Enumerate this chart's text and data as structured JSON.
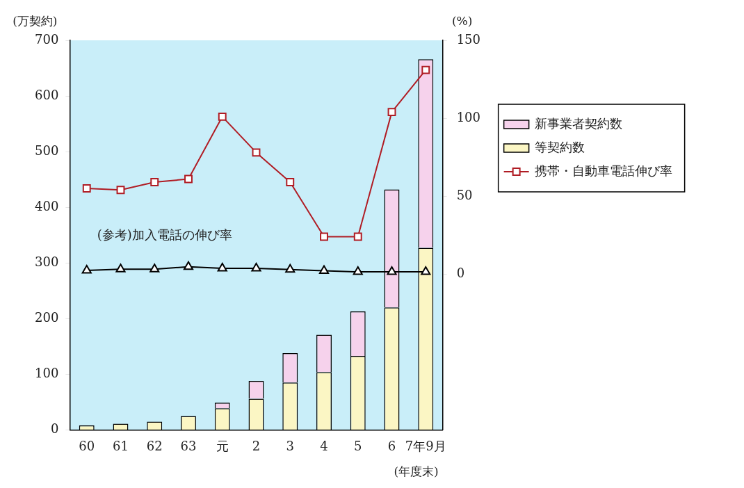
{
  "chart_data": {
    "type": "bar",
    "stacked": true,
    "categories": [
      "60",
      "61",
      "62",
      "63",
      "元",
      "2",
      "3",
      "4",
      "5",
      "6",
      "7年9月"
    ],
    "series": [
      {
        "name": "等契約数",
        "color": "#fbf6c4",
        "values": [
          8,
          11,
          15,
          25,
          39,
          56,
          85,
          104,
          133,
          220,
          327
        ]
      },
      {
        "name": "新事業者契約数",
        "color": "#f6d2ec",
        "values": [
          null,
          null,
          null,
          null,
          10,
          32,
          53,
          67,
          80,
          212,
          339
        ]
      },
      {
        "name": "携帯・自動車電話伸び率",
        "type": "line",
        "axis": "y2",
        "marker": "square",
        "color": "#b01c24",
        "values": [
          55,
          54,
          59,
          61,
          101,
          78,
          59,
          24,
          24,
          104,
          131
        ]
      },
      {
        "type": "line",
        "axis": "y2",
        "marker": "triangle",
        "color": "#000000",
        "values": [
          2.3,
          3.1,
          3.1,
          4.7,
          3.7,
          3.7,
          2.9,
          2.1,
          1.4,
          1.4,
          1.4
        ]
      }
    ],
    "ylabel": "(万契約)",
    "y2label": "(%)",
    "xlabel": "(年度末)",
    "ylim": [
      0,
      700
    ],
    "yticks": [
      0,
      100,
      200,
      300,
      400,
      500,
      600,
      700
    ],
    "y2lim": [
      -100,
      150
    ],
    "y2ticks": [
      0,
      50,
      100,
      150
    ],
    "annotations": [
      "(参考)加入電話の伸び率"
    ],
    "grid": false,
    "legend": "right",
    "line_style": "solid"
  }
}
